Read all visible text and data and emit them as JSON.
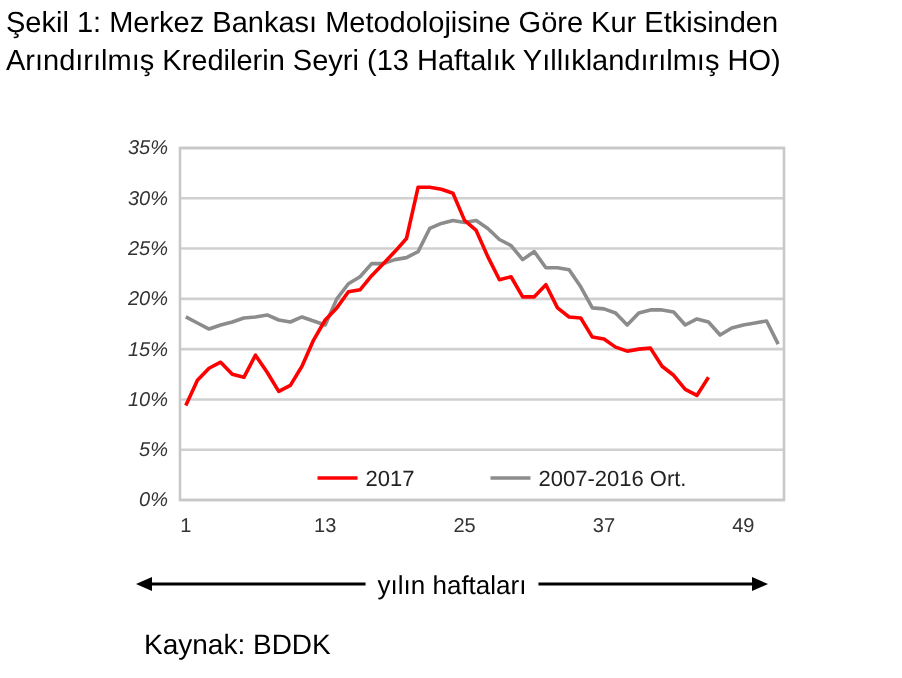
{
  "chart_data": {
    "type": "line",
    "title": "Şekil 1: Merkez Bankası Metodolojisine Göre Kur Etkisinden Arındırılmış Kredilerin Seyri (13 Haftalık Yıllıklandırılmış HO)",
    "xlabel": "yılın haftaları",
    "annotations": [
      "Kaynak: BDDK"
    ],
    "x": [
      1,
      2,
      3,
      4,
      5,
      6,
      7,
      8,
      9,
      10,
      11,
      12,
      13,
      14,
      15,
      16,
      17,
      18,
      19,
      20,
      21,
      22,
      23,
      24,
      25,
      26,
      27,
      28,
      29,
      30,
      31,
      32,
      33,
      34,
      35,
      36,
      37,
      38,
      39,
      40,
      41,
      42,
      43,
      44,
      45,
      46,
      47,
      48,
      49,
      50,
      51,
      52
    ],
    "series": [
      {
        "name": "2017",
        "color": "#ff0000",
        "values": [
          9.4,
          11.9,
          13.1,
          13.7,
          12.5,
          12.2,
          14.4,
          12.7,
          10.8,
          11.4,
          13.3,
          15.9,
          17.9,
          19.1,
          20.7,
          20.9,
          22.3,
          23.5,
          24.7,
          26.0,
          31.1,
          31.1,
          30.9,
          30.5,
          27.8,
          26.8,
          24.2,
          21.9,
          22.2,
          20.2,
          20.2,
          21.4,
          19.1,
          18.2,
          18.1,
          16.2,
          16.0,
          15.2,
          14.8,
          15.0,
          15.1,
          13.3,
          12.4,
          11.0,
          10.4,
          12.2,
          null,
          null,
          null,
          null,
          null,
          null
        ]
      },
      {
        "name": "2007-2016 Ort.",
        "color": "#8c8c8c",
        "values": [
          18.2,
          17.6,
          17.0,
          17.4,
          17.7,
          18.1,
          18.2,
          18.4,
          17.9,
          17.7,
          18.2,
          17.8,
          17.4,
          20.0,
          21.5,
          22.2,
          23.5,
          23.5,
          23.9,
          24.1,
          24.7,
          27.0,
          27.5,
          27.8,
          27.6,
          27.8,
          27.0,
          25.9,
          25.3,
          23.9,
          24.7,
          23.1,
          23.1,
          22.9,
          21.2,
          19.1,
          19.0,
          18.6,
          17.4,
          18.6,
          18.9,
          18.9,
          18.7,
          17.4,
          18.0,
          17.7,
          16.4,
          17.1,
          17.4,
          17.6,
          17.8,
          15.5
        ]
      }
    ],
    "xlim": [
      0.5,
      52.5
    ],
    "xticks": [
      1,
      13,
      25,
      37,
      49
    ],
    "ylim": [
      0,
      35
    ],
    "yticks": [
      {
        "value": 0,
        "label": "0%"
      },
      {
        "value": 5,
        "label": "5%"
      },
      {
        "value": 10,
        "label": "10%"
      },
      {
        "value": 15,
        "label": "15%"
      },
      {
        "value": 20,
        "label": "20%"
      },
      {
        "value": 25,
        "label": "25%"
      },
      {
        "value": 30,
        "label": "30%"
      },
      {
        "value": 35,
        "label": "35%"
      }
    ],
    "grid": "y",
    "legend": "bottom",
    "marker": "none",
    "line_style": "solid"
  }
}
